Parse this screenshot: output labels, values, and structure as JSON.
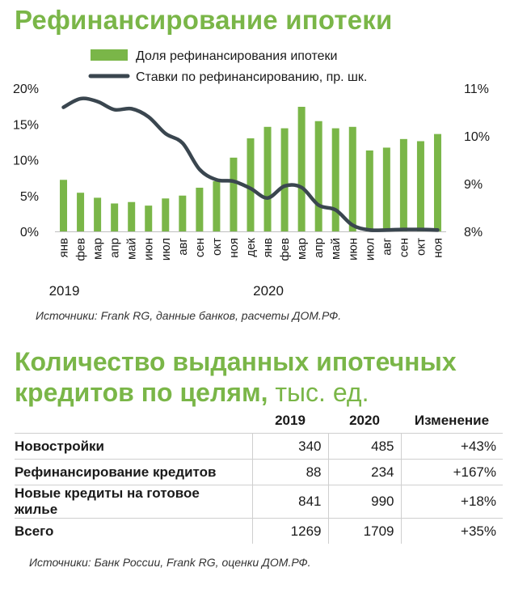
{
  "chart_title": "Рефинансирование ипотеки",
  "chart_data": {
    "type": "bar",
    "legend": {
      "placement": "top"
    },
    "categories": [
      "янв",
      "фев",
      "мар",
      "апр",
      "май",
      "июн",
      "июл",
      "авг",
      "сен",
      "окт",
      "ноя",
      "дек",
      "янв",
      "фев",
      "мар",
      "апр",
      "май",
      "июн",
      "июл",
      "авг",
      "сен",
      "окт",
      "ноя"
    ],
    "year_labels": [
      {
        "label": "2019",
        "index": 0
      },
      {
        "label": "2020",
        "index": 12
      }
    ],
    "series": [
      {
        "name": "Доля рефинансирования ипотеки",
        "type": "bar",
        "axis": "left",
        "color": "#7ab648",
        "values": [
          7.2,
          5.4,
          4.7,
          3.9,
          4.1,
          3.6,
          4.6,
          5.0,
          6.1,
          7.0,
          10.3,
          13.0,
          14.6,
          14.4,
          17.4,
          15.4,
          14.4,
          14.6,
          11.3,
          11.7,
          12.9,
          12.6,
          13.6
        ]
      },
      {
        "name": "Ставки по рефинансированию, пр. шк.",
        "type": "line",
        "axis": "right",
        "color": "#3a464f",
        "values": [
          10.6,
          10.78,
          10.72,
          10.55,
          10.57,
          10.4,
          10.05,
          9.85,
          9.3,
          9.08,
          9.05,
          8.9,
          8.7,
          8.95,
          8.92,
          8.55,
          8.45,
          8.13,
          8.03,
          8.03,
          8.04,
          8.04,
          8.03
        ]
      }
    ],
    "left_axis": {
      "ylim": [
        0,
        20
      ],
      "ticks": [
        "0%",
        "5%",
        "10%",
        "15%",
        "20%"
      ]
    },
    "right_axis": {
      "ylim": [
        8,
        11
      ],
      "ticks": [
        "8%",
        "9%",
        "10%",
        "11%"
      ]
    },
    "grid": false
  },
  "chart_source": "Источники: Frank RG, данные банков, расчеты ДОМ.РФ.",
  "table_title_line1": "Количество выданных ипотечных",
  "table_title_line2": "кредитов по целям,",
  "table_title_unit": "тыс. ед.",
  "table": {
    "headers": [
      "2019",
      "2020",
      "Изменение"
    ],
    "rows": [
      {
        "label": "Новостройки",
        "v2019": "340",
        "v2020": "485",
        "change": "+43%"
      },
      {
        "label": "Рефинансирование кредитов",
        "v2019": "88",
        "v2020": "234",
        "change": "+167%"
      },
      {
        "label": "Новые кредиты на готовое жилье",
        "v2019": "841",
        "v2020": "990",
        "change": "+18%"
      },
      {
        "label": "Всего",
        "v2019": "1269",
        "v2020": "1709",
        "change": "+35%"
      }
    ]
  },
  "table_source": "Источники: Банк России, Frank RG, оценки ДОМ.РФ."
}
